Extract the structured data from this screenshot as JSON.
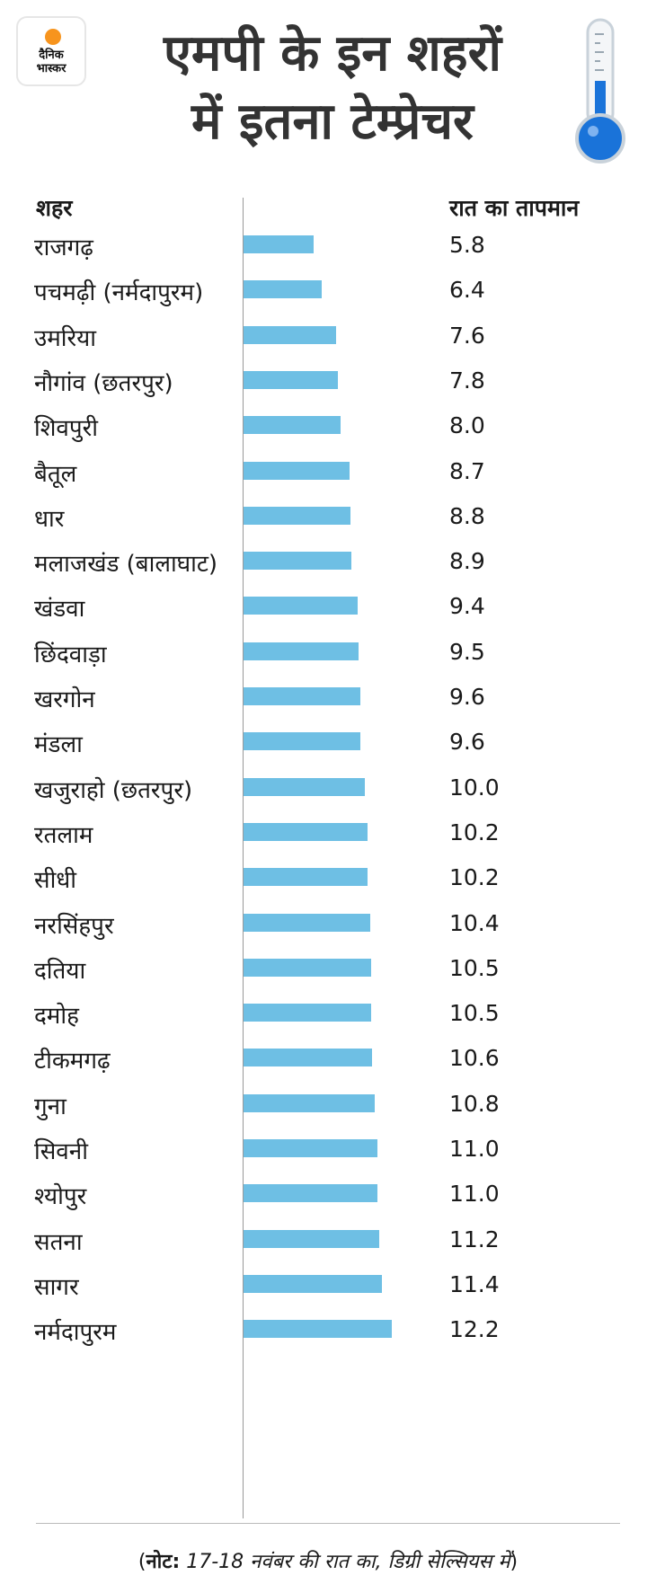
{
  "logo": {
    "text": "दैनिक\nभास्कर"
  },
  "header": {
    "title": "एमपी के इन शहरों\nमें इतना टेम्प्रेचर"
  },
  "columns": {
    "city": "शहर",
    "temp": "रात का तापमान"
  },
  "note": {
    "prefix": "(",
    "label": "नोट:",
    "text": " 17-18 नवंबर की रात का, डिग्री सेल्सियस में",
    "suffix": ")"
  },
  "colors": {
    "bar": "#6ebfe4",
    "logo_dot": "#f7941d",
    "thermo_fill": "#1a73d9"
  },
  "chart_data": {
    "type": "bar",
    "orientation": "horizontal",
    "xlim": [
      0,
      12.2
    ],
    "categories": [
      "राजगढ़",
      "पचमढ़ी (नर्मदापुरम)",
      "उमरिया",
      "नौगांव (छतरपुर)",
      "शिवपुरी",
      "बैतूल",
      "धार",
      "मलाजखंड (बालाघाट)",
      "खंडवा",
      "छिंदवाड़ा",
      "खरगोन",
      "मंडला",
      "खजुराहो (छतरपुर)",
      "रतलाम",
      "सीधी",
      "नरसिंहपुर",
      "दतिया",
      "दमोह",
      "टीकमगढ़",
      "गुना",
      "सिवनी",
      "श्योपुर",
      "सतना",
      "सागर",
      "नर्मदापुरम"
    ],
    "values": [
      5.8,
      6.4,
      7.6,
      7.8,
      8.0,
      8.7,
      8.8,
      8.9,
      9.4,
      9.5,
      9.6,
      9.6,
      10.0,
      10.2,
      10.2,
      10.4,
      10.5,
      10.5,
      10.6,
      10.8,
      11.0,
      11.0,
      11.2,
      11.4,
      12.2
    ],
    "labels": [
      "5.8",
      "6.4",
      "7.6",
      "7.8",
      "8.0",
      "8.7",
      "8.8",
      "8.9",
      "9.4",
      "9.5",
      "9.6",
      "9.6",
      "10.0",
      "10.2",
      "10.2",
      "10.4",
      "10.5",
      "10.5",
      "10.6",
      "10.8",
      "11.0",
      "11.0",
      "11.2",
      "11.4",
      "12.2"
    ]
  }
}
